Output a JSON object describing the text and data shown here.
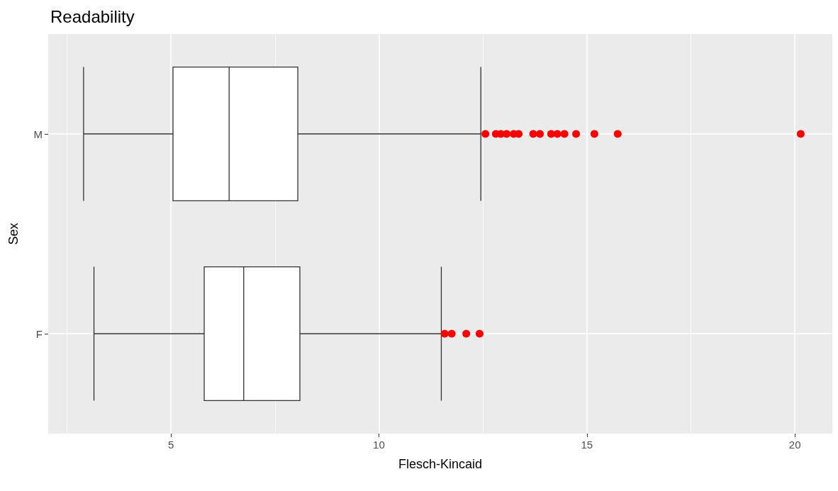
{
  "chart_data": {
    "type": "box",
    "title": "Readability",
    "xlabel": "Flesch-Kincaid",
    "ylabel": "Sex",
    "orientation": "horizontal",
    "categories": [
      "M",
      "F"
    ],
    "boxes": [
      {
        "low": 2.9,
        "q1": 5.05,
        "median": 6.4,
        "q3": 8.05,
        "high": 12.45,
        "outliers": [
          12.56,
          12.81,
          12.93,
          13.07,
          13.24,
          13.36,
          13.71,
          13.87,
          14.14,
          14.29,
          14.46,
          14.74,
          15.18,
          15.74,
          20.14
        ]
      },
      {
        "low": 3.15,
        "q1": 5.8,
        "median": 6.75,
        "q3": 8.1,
        "high": 11.5,
        "outliers": [
          11.58,
          11.75,
          12.1,
          12.42
        ]
      }
    ],
    "color": "#ffffff",
    "xlim": [
      2.05,
      20.9
    ],
    "xticks": [
      5,
      10,
      15,
      20
    ],
    "grid": true
  }
}
